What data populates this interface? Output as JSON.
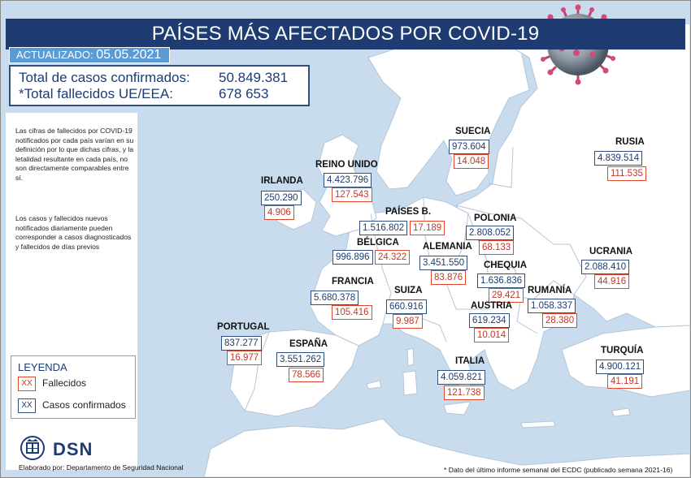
{
  "header": {
    "title": "PAÍSES MÁS AFECTADOS POR COVID-19",
    "updated_label": "ACTUALIZADO:",
    "updated_date": "05.05.2021"
  },
  "totals": {
    "confirmed_label": "Total de casos confirmados:",
    "confirmed_value": "50.849.381",
    "deaths_label": "*Total fallecidos UE/EEA:",
    "deaths_value": "678 653"
  },
  "notes": [
    "Las cifras de fallecidos por COVID-19 notificados por cada país varían en su definición por lo que dichas cifras, y la letalidad resultante en cada país, no son directamente comparables entre sí.",
    "Los casos y fallecidos nuevos notificados diariamente pueden corresponder a casos diagnosticados y fallecidos de días previos"
  ],
  "legend": {
    "title": "LEYENDA",
    "swatch": "XX",
    "deaths_label": "Fallecidos",
    "cases_label": "Casos confirmados"
  },
  "logo": {
    "text": "DSN"
  },
  "credit": "Elaborado por: Departamento de Seguridad Nacional",
  "footnote": "* Dato del último informe semanal del ECDC (publicado semana 2021-16)",
  "countries": {
    "irlanda": {
      "name": "IRLANDA",
      "cases": "250.290",
      "deaths": "4.906"
    },
    "reino_unido": {
      "name": "REINO UNIDO",
      "cases": "4.423.796",
      "deaths": "127.543"
    },
    "suecia": {
      "name": "SUECIA",
      "cases": "973.604",
      "deaths": "14.048"
    },
    "rusia": {
      "name": "RUSIA",
      "cases": "4.839.514",
      "deaths": "111.535"
    },
    "paises_bajos": {
      "name": "PAÍSES B.",
      "cases": "1.516.802",
      "deaths": "17.189"
    },
    "polonia": {
      "name": "POLONIA",
      "cases": "2.808.052",
      "deaths": "68.133"
    },
    "belgica": {
      "name": "BÉLGICA",
      "cases": "996.896",
      "deaths": "24.322"
    },
    "alemania": {
      "name": "ALEMANIA",
      "cases": "3.451.550",
      "deaths": "83.876"
    },
    "ucrania": {
      "name": "UCRANIA",
      "cases": "2.088.410",
      "deaths": "44.916"
    },
    "chequia": {
      "name": "CHEQUIA",
      "cases": "1.636.836",
      "deaths": "29.421"
    },
    "francia": {
      "name": "FRANCIA",
      "cases": "5.680.378",
      "deaths": "105.416"
    },
    "suiza": {
      "name": "SUIZA",
      "cases": "660.916",
      "deaths": "9.987"
    },
    "rumania": {
      "name": "RUMANÍA",
      "cases": "1.058.337",
      "deaths": "28.380"
    },
    "austria": {
      "name": "AUSTRIA",
      "cases": "619.234",
      "deaths": "10.014"
    },
    "portugal": {
      "name": "PORTUGAL",
      "cases": "837.277",
      "deaths": "16.977"
    },
    "espana": {
      "name": "ESPAÑA",
      "cases": "3.551.262",
      "deaths": "78.566"
    },
    "turquia": {
      "name": "TURQUÍA",
      "cases": "4.900.121",
      "deaths": "41.191"
    },
    "italia": {
      "name": "ITALIA",
      "cases": "4.059.821",
      "deaths": "121.738"
    }
  },
  "colors": {
    "header_bg": "#1e3c72",
    "badge_bg": "#5b9bd5",
    "sea": "#c8dced",
    "land": "#ffffff",
    "border": "#b4c6d8",
    "cases_border": "#2f4f7f",
    "deaths_border": "#e0482b"
  }
}
